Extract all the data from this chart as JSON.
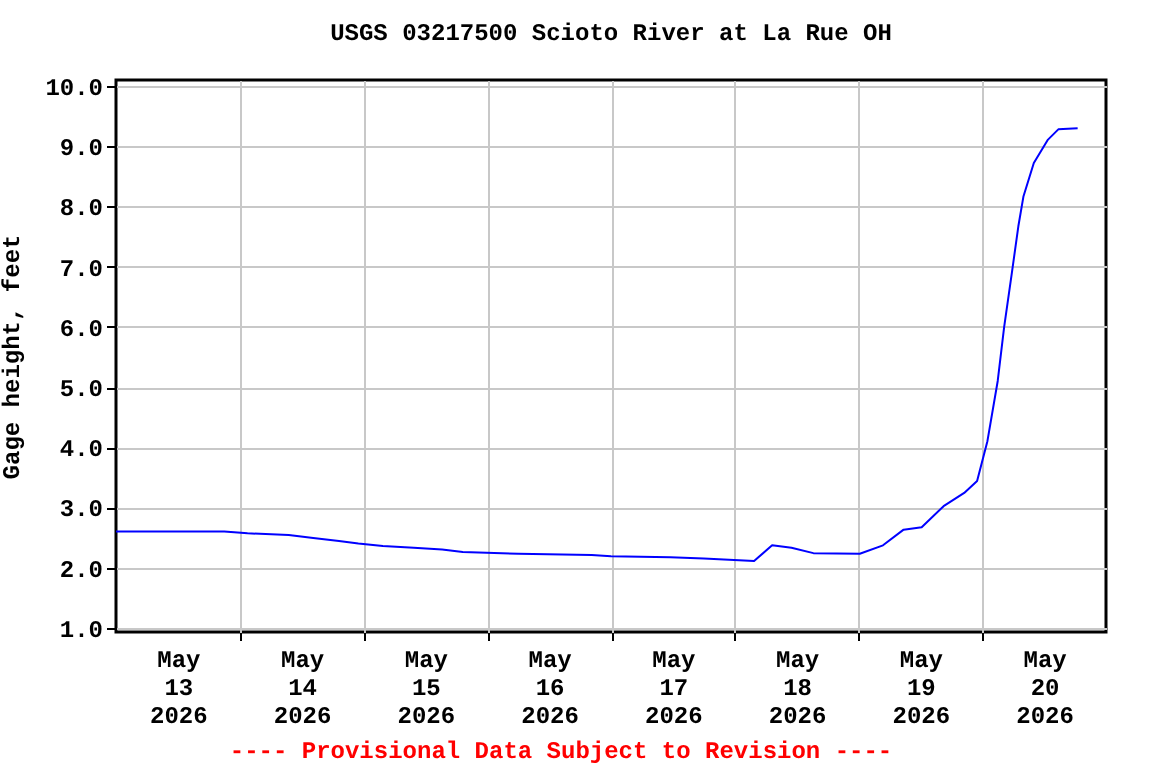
{
  "chart_data": {
    "type": "line",
    "title": "USGS 03217500 Scioto River at La Rue OH",
    "ylabel": "Gage height, feet",
    "annotations": [
      "---- Provisional Data Subject to Revision ----"
    ],
    "x": [
      "2026-05-13T00:00",
      "2026-05-13T21:00",
      "2026-05-14T01:30",
      "2026-05-14T09:30",
      "2026-05-14T14:15",
      "2026-05-14T19:15",
      "2026-05-14T23:00",
      "2026-05-15T03:45",
      "2026-05-15T09:45",
      "2026-05-15T15:15",
      "2026-05-15T19:15",
      "2026-05-16T06:00",
      "2026-05-16T20:15",
      "2026-05-17T00:00",
      "2026-05-17T11:30",
      "2026-05-17T18:00",
      "2026-05-18T03:45",
      "2026-05-18T07:15",
      "2026-05-18T11:00",
      "2026-05-18T15:15",
      "2026-05-19T00:15",
      "2026-05-19T04:45",
      "2026-05-19T08:45",
      "2026-05-19T12:15",
      "2026-05-19T16:30",
      "2026-05-19T20:30",
      "2026-05-19T23:00",
      "2026-05-20T01:00",
      "2026-05-20T03:00",
      "2026-05-20T04:15",
      "2026-05-20T05:45",
      "2026-05-20T07:00",
      "2026-05-20T08:00",
      "2026-05-20T10:00",
      "2026-05-20T12:45",
      "2026-05-20T14:45",
      "2026-05-20T18:30"
    ],
    "series": [
      {
        "color": "#0000ff",
        "values": [
          2.6,
          2.6,
          2.57,
          2.54,
          2.49,
          2.44,
          2.4,
          2.36,
          2.33,
          2.3,
          2.26,
          2.23,
          2.21,
          2.19,
          2.17,
          2.15,
          2.11,
          2.37,
          2.33,
          2.24,
          2.23,
          2.37,
          2.63,
          2.67,
          3.02,
          3.24,
          3.44,
          4.1,
          5.1,
          6.0,
          6.9,
          7.67,
          8.17,
          8.72,
          9.11,
          9.28,
          9.3
        ]
      }
    ],
    "xlim": [
      "2026-05-13T00:00",
      "2026-05-21T00:00"
    ],
    "xticks": [
      {
        "value": "2026-05-13T12:00",
        "label": "May 13 2026"
      },
      {
        "value": "2026-05-14T00:00",
        "label": null
      },
      {
        "value": "2026-05-14T12:00",
        "label": "May 14 2026"
      },
      {
        "value": "2026-05-15T00:00",
        "label": null
      },
      {
        "value": "2026-05-15T12:00",
        "label": "May 15 2026"
      },
      {
        "value": "2026-05-16T00:00",
        "label": null
      },
      {
        "value": "2026-05-16T12:00",
        "label": "May 16 2026"
      },
      {
        "value": "2026-05-17T00:00",
        "label": null
      },
      {
        "value": "2026-05-17T12:00",
        "label": "May 17 2026"
      },
      {
        "value": "2026-05-18T00:00",
        "label": null
      },
      {
        "value": "2026-05-18T12:00",
        "label": "May 18 2026"
      },
      {
        "value": "2026-05-19T00:00",
        "label": null
      },
      {
        "value": "2026-05-19T12:00",
        "label": "May 19 2026"
      },
      {
        "value": "2026-05-20T00:00",
        "label": null
      },
      {
        "value": "2026-05-20T12:00",
        "label": "May 20 2026"
      }
    ],
    "ylim": [
      0.93,
      10.1
    ],
    "yticks": [
      {
        "value": 1,
        "label": "1.0"
      },
      {
        "value": 2,
        "label": "2.0"
      },
      {
        "value": 3,
        "label": "3.0"
      },
      {
        "value": 4,
        "label": "4.0"
      },
      {
        "value": 5,
        "label": "5.0"
      },
      {
        "value": 6,
        "label": "6.0"
      },
      {
        "value": 7,
        "label": "7.0"
      },
      {
        "value": 8,
        "label": "8.0"
      },
      {
        "value": 9,
        "label": "9.0"
      },
      {
        "value": 10,
        "label": "10.0"
      }
    ],
    "grid": true,
    "line_style": "solid",
    "marker": "none"
  }
}
